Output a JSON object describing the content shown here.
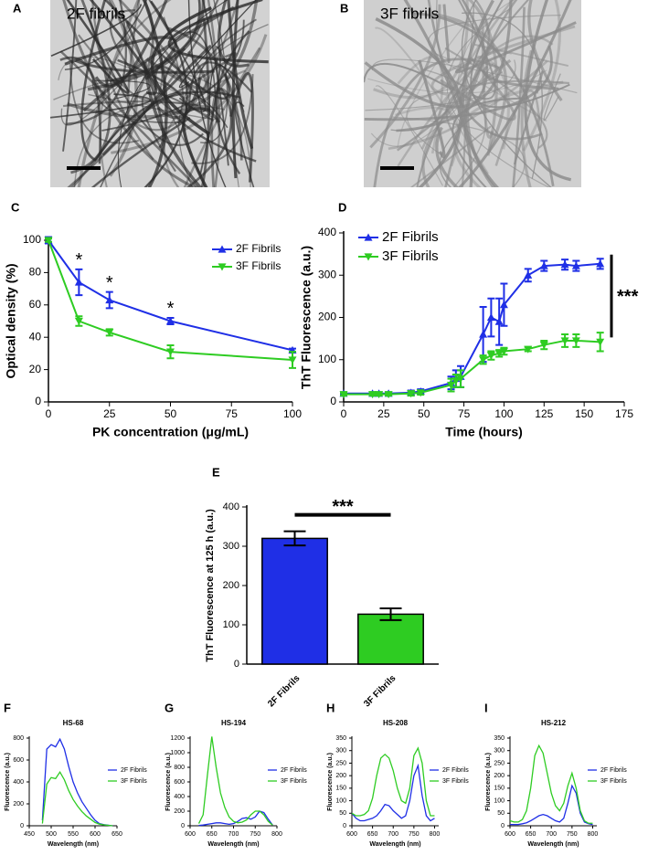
{
  "images": [
    {
      "panel": "A",
      "label": "2F fibrils",
      "color": "#1f2fe6"
    },
    {
      "panel": "B",
      "label": "3F fibrils",
      "color": "#2ecc40"
    }
  ],
  "chart_data": [
    {
      "type": "line",
      "panel": "C",
      "xlabel": "PK concentration (μg/mL)",
      "ylabel": "Optical density (%)",
      "x": [
        0,
        12.5,
        25,
        50,
        100
      ],
      "xlim": [
        0,
        100
      ],
      "xticks": [
        0,
        25,
        50,
        75,
        100
      ],
      "ylim": [
        0,
        100
      ],
      "yticks": [
        0,
        20,
        40,
        60,
        80,
        100
      ],
      "legend": "upper right",
      "series": [
        {
          "name": "2F Fibrils",
          "color": "#1f2fe6",
          "marker": "^",
          "values": [
            100,
            74,
            63,
            50,
            32
          ],
          "errors": [
            2,
            8,
            5,
            2,
            1
          ],
          "annotations": [
            null,
            "*",
            "*",
            "*",
            null
          ]
        },
        {
          "name": "3F Fibrils",
          "color": "#2ecc22",
          "marker": "v",
          "values": [
            100,
            50,
            43,
            31,
            26
          ],
          "errors": [
            1,
            3,
            2,
            4,
            5
          ]
        }
      ]
    },
    {
      "type": "line",
      "panel": "D",
      "xlabel": "Time (hours)",
      "ylabel": "ThT Fluorescence (a.u.)",
      "annotation": "***",
      "x": [
        0,
        18,
        22,
        28,
        42,
        48,
        67,
        70,
        73,
        87,
        92,
        97,
        100,
        115,
        125,
        138,
        145,
        160
      ],
      "xlim": [
        0,
        175
      ],
      "xticks": [
        0,
        25,
        50,
        75,
        100,
        125,
        150,
        175
      ],
      "ylim": [
        0,
        400
      ],
      "yticks": [
        0,
        100,
        200,
        300,
        400
      ],
      "legend": "upper left",
      "series": [
        {
          "name": "2F Fibrils",
          "color": "#1f2fe6",
          "marker": "^",
          "values": [
            20,
            20,
            20,
            20,
            22,
            25,
            45,
            55,
            60,
            160,
            200,
            190,
            230,
            300,
            322,
            325,
            322,
            327
          ],
          "errors": [
            3,
            3,
            3,
            3,
            5,
            5,
            15,
            20,
            25,
            65,
            45,
            55,
            50,
            15,
            12,
            12,
            12,
            12
          ]
        },
        {
          "name": "3F Fibrils",
          "color": "#2ecc22",
          "marker": "v",
          "values": [
            18,
            18,
            18,
            18,
            20,
            22,
            40,
            50,
            55,
            100,
            110,
            115,
            120,
            125,
            135,
            145,
            145,
            142
          ],
          "errors": [
            3,
            3,
            3,
            3,
            5,
            5,
            15,
            15,
            20,
            10,
            10,
            8,
            8,
            5,
            10,
            15,
            15,
            22
          ]
        }
      ]
    },
    {
      "type": "bar",
      "panel": "E",
      "ylabel": "ThT Fluorescence at 125 h (a.u.)",
      "annotation": "***",
      "categories": [
        "2F Fibrils",
        "3F Fibrils"
      ],
      "values": [
        320,
        127
      ],
      "errors": [
        18,
        15
      ],
      "colors": [
        "#1f2fe6",
        "#2ecc22"
      ],
      "ylim": [
        0,
        400
      ],
      "yticks": [
        0,
        100,
        200,
        300,
        400
      ]
    },
    {
      "type": "line",
      "panel": "F",
      "title": "HS-68",
      "xlabel": "Wavelength (nm)",
      "ylabel": "Fluorescence (a.u.)",
      "legend": "right",
      "x": [
        480,
        490,
        500,
        510,
        520,
        530,
        540,
        550,
        560,
        570,
        580,
        590,
        600,
        610,
        620,
        630,
        640
      ],
      "xlim": [
        450,
        650
      ],
      "xticks": [
        450,
        500,
        550,
        600,
        650
      ],
      "ylim": [
        0,
        800
      ],
      "yticks": [
        0,
        200,
        400,
        600,
        800
      ],
      "series": [
        {
          "name": "2F Fibrils",
          "color": "#1f2fe6",
          "values": [
            50,
            700,
            740,
            720,
            790,
            700,
            540,
            400,
            300,
            220,
            160,
            100,
            50,
            20,
            10,
            5,
            0
          ]
        },
        {
          "name": "3F Fibrils",
          "color": "#2ecc22",
          "values": [
            20,
            380,
            440,
            430,
            490,
            420,
            320,
            240,
            180,
            130,
            90,
            60,
            30,
            15,
            8,
            4,
            0
          ]
        }
      ]
    },
    {
      "type": "line",
      "panel": "G",
      "title": "HS-194",
      "xlabel": "Wavelength (nm)",
      "ylabel": "Fluorescence (a.u.)",
      "legend": "right",
      "x": [
        620,
        630,
        640,
        650,
        660,
        670,
        680,
        690,
        700,
        710,
        720,
        730,
        740,
        750,
        760,
        770,
        780,
        790
      ],
      "xlim": [
        600,
        800
      ],
      "xticks": [
        600,
        650,
        700,
        750,
        800
      ],
      "ylim": [
        0,
        1200
      ],
      "yticks": [
        0,
        200,
        400,
        600,
        800,
        1000,
        1200
      ],
      "series": [
        {
          "name": "2F Fibrils",
          "color": "#1f2fe6",
          "values": [
            5,
            10,
            20,
            30,
            40,
            40,
            30,
            20,
            30,
            60,
            100,
            110,
            90,
            120,
            200,
            180,
            90,
            10
          ]
        },
        {
          "name": "3F Fibrils",
          "color": "#2ecc22",
          "values": [
            30,
            150,
            700,
            1220,
            800,
            450,
            250,
            120,
            60,
            40,
            50,
            80,
            150,
            200,
            200,
            150,
            60,
            10
          ]
        }
      ]
    },
    {
      "type": "line",
      "panel": "H",
      "title": "HS-208",
      "xlabel": "Wavelength (nm)",
      "ylabel": "Fluorescence (a.u.)",
      "legend": "right",
      "x": [
        600,
        610,
        620,
        630,
        640,
        650,
        660,
        670,
        680,
        690,
        700,
        710,
        720,
        730,
        740,
        750,
        760,
        770,
        780,
        790,
        800
      ],
      "xlim": [
        600,
        810
      ],
      "xticks": [
        600,
        650,
        700,
        750,
        800
      ],
      "ylim": [
        0,
        350
      ],
      "yticks": [
        0,
        50,
        100,
        150,
        200,
        250,
        300,
        350
      ],
      "series": [
        {
          "name": "2F Fibrils",
          "color": "#1f2fe6",
          "values": [
            50,
            30,
            20,
            20,
            25,
            30,
            40,
            60,
            85,
            80,
            60,
            45,
            30,
            40,
            100,
            200,
            240,
            120,
            40,
            20,
            30
          ]
        },
        {
          "name": "3F Fibrils",
          "color": "#2ecc22",
          "values": [
            50,
            40,
            40,
            45,
            60,
            110,
            200,
            270,
            285,
            270,
            220,
            150,
            100,
            90,
            150,
            280,
            310,
            250,
            100,
            40,
            40
          ]
        }
      ]
    },
    {
      "type": "line",
      "panel": "I",
      "title": "HS-212",
      "xlabel": "Wavelength (nm)",
      "ylabel": "Fluorescence (a.u.)",
      "legend": "right",
      "x": [
        600,
        610,
        620,
        630,
        640,
        650,
        660,
        670,
        680,
        690,
        700,
        710,
        720,
        730,
        740,
        750,
        760,
        770,
        780,
        790,
        800
      ],
      "xlim": [
        600,
        810
      ],
      "xticks": [
        600,
        650,
        700,
        750,
        800
      ],
      "ylim": [
        0,
        350
      ],
      "yticks": [
        0,
        50,
        100,
        150,
        200,
        250,
        300,
        350
      ],
      "series": [
        {
          "name": "2F Fibrils",
          "color": "#1f2fe6",
          "values": [
            5,
            5,
            5,
            8,
            12,
            20,
            30,
            40,
            45,
            40,
            30,
            20,
            15,
            30,
            90,
            160,
            130,
            50,
            15,
            8,
            5
          ]
        },
        {
          "name": "3F Fibrils",
          "color": "#2ecc22",
          "values": [
            20,
            15,
            15,
            25,
            60,
            150,
            280,
            320,
            290,
            210,
            130,
            80,
            60,
            90,
            160,
            210,
            150,
            60,
            20,
            10,
            10
          ]
        }
      ]
    }
  ]
}
